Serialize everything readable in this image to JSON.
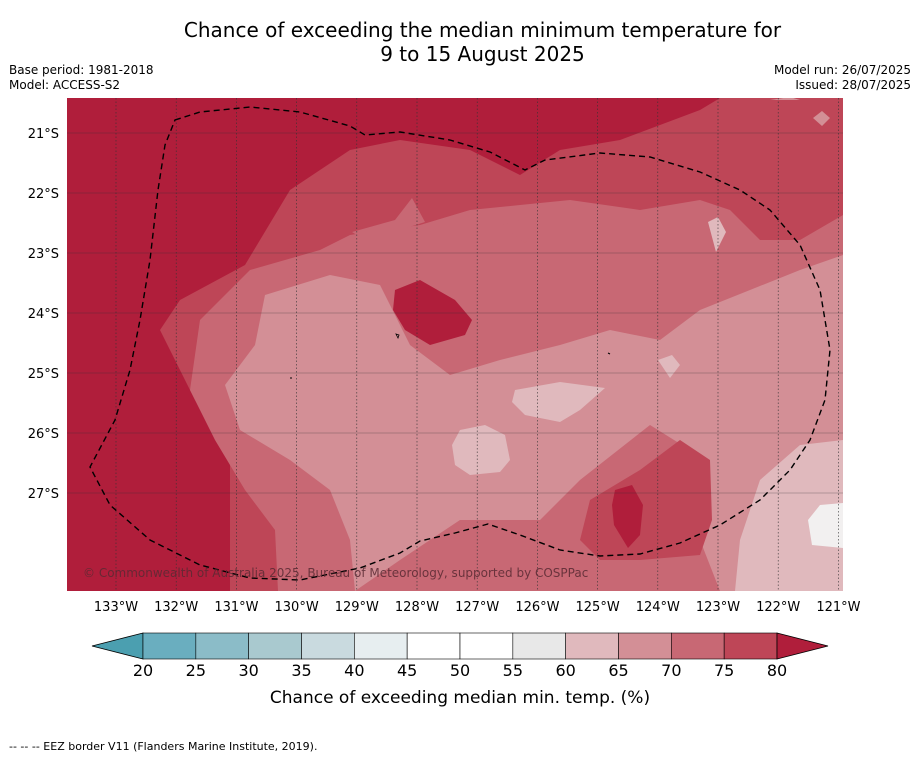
{
  "title": {
    "line1": "Chance of exceeding the median minimum temperature for",
    "line2": "9 to 15 August 2025"
  },
  "meta": {
    "base_period": "Base period: 1981-2018",
    "model": "Model: ACCESS-S2",
    "model_run": "Model run: 26/07/2025",
    "issued": "Issued: 28/07/2025"
  },
  "map": {
    "copyright": "© Commonwealth of Australia 2025, Bureau of Meteorology, supported by COSPPac",
    "lon_labels": [
      "133°W",
      "132°W",
      "131°W",
      "130°W",
      "129°W",
      "128°W",
      "127°W",
      "126°W",
      "125°W",
      "124°W",
      "123°W",
      "122°W",
      "121°W"
    ],
    "lat_labels": [
      "21°S",
      "22°S",
      "23°S",
      "24°S",
      "25°S",
      "26°S",
      "27°S"
    ]
  },
  "colorbar": {
    "ticks": [
      "20",
      "25",
      "30",
      "35",
      "40",
      "45",
      "50",
      "55",
      "60",
      "65",
      "70",
      "75",
      "80"
    ],
    "title": "Chance of exceeding median min. temp. (%)",
    "colors": {
      "below": "#4b9fb0",
      "bins": [
        "#6aaebf",
        "#8bbcc8",
        "#a9c9cf",
        "#c9dadf",
        "#e7eef0",
        "#ffffff",
        "#ffffff",
        "#e8e8e8",
        "#e0b9bd",
        "#d38f96",
        "#c86874",
        "#be4657"
      ],
      "above": "#b01e3b"
    }
  },
  "footnote": "--  --  -- EEZ border V11 (Flanders Marine Institute, 2019)."
}
